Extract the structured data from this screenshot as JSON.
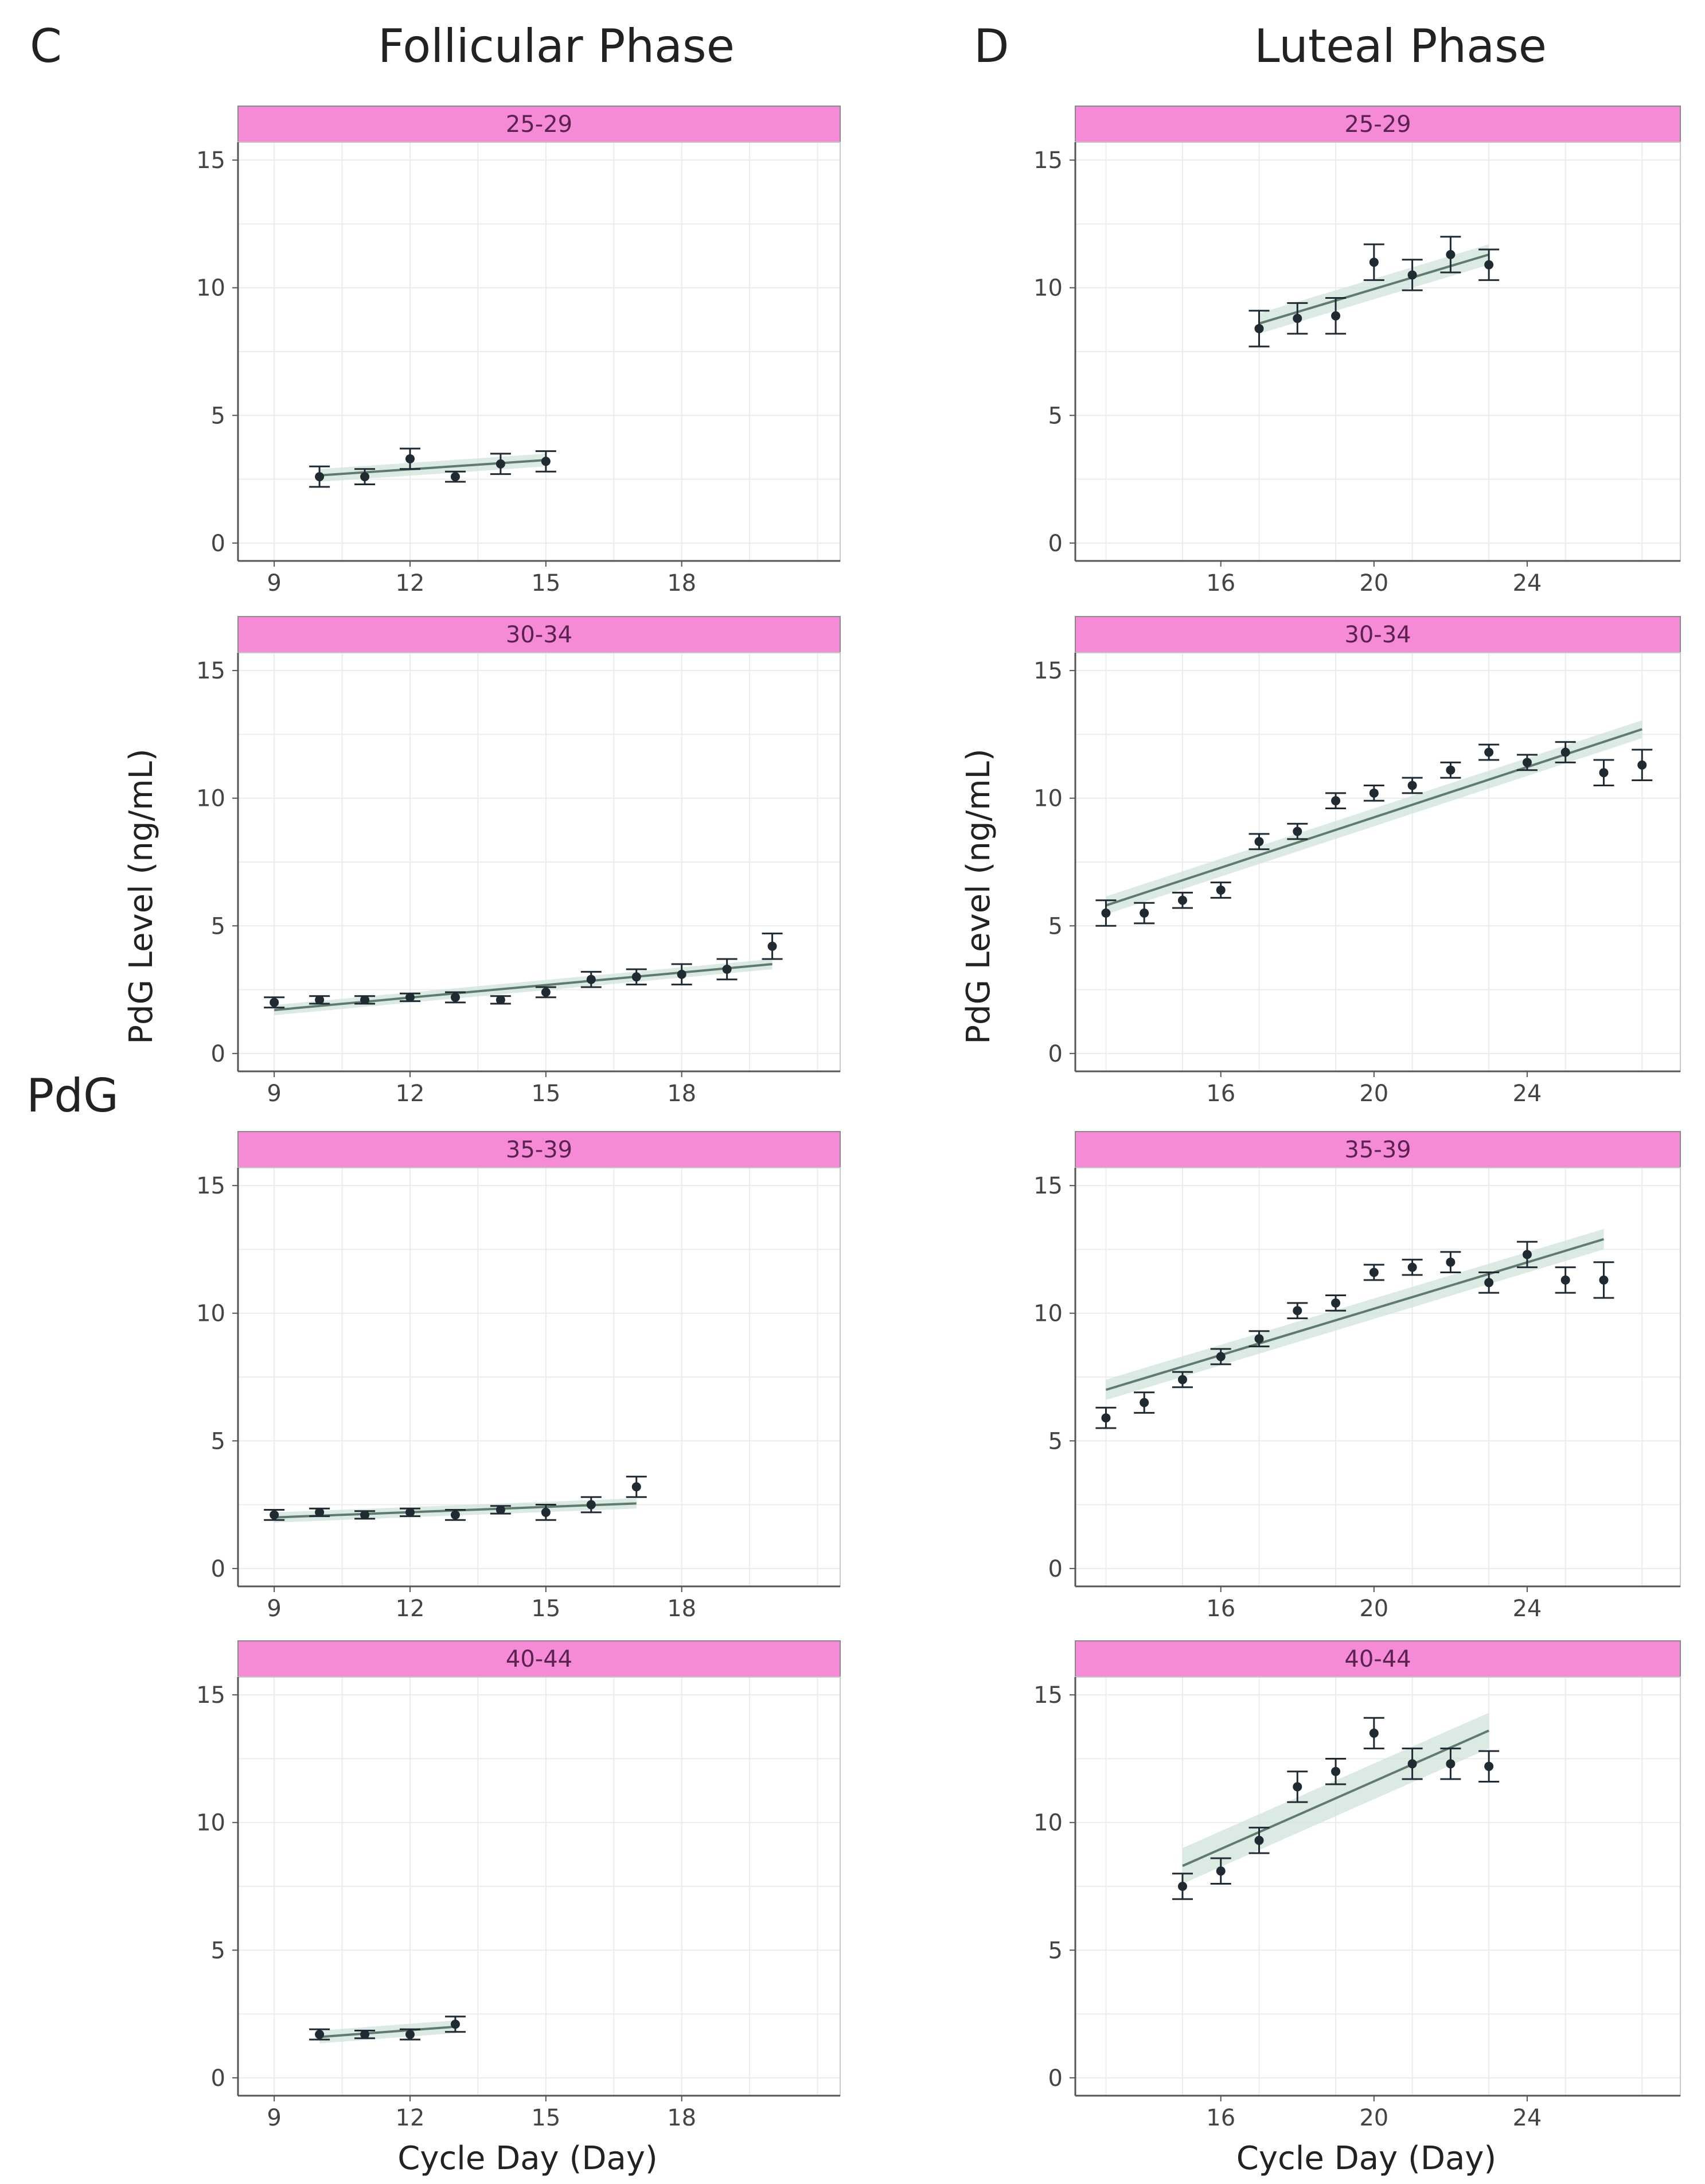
{
  "figure": {
    "panel_c_letter": "C",
    "panel_d_letter": "D",
    "panel_c_title": "Follicular Phase",
    "panel_d_title": "Luteal Phase",
    "row_label": "PdG",
    "ylabel": "PdG Level (ng/mL)",
    "xlabel": "Cycle Day (Day)"
  },
  "colors": {
    "strip": "#f58bd6",
    "point": "#1f2a33",
    "fit_line": "#5f7b70",
    "ribbon": "#cfe3da",
    "grid": "#ececec",
    "border": "#8a8a8a"
  },
  "chart_data": [
    {
      "id": "C-25-29",
      "panel": "C",
      "type": "scatter",
      "facet": "25-29",
      "x_ticks": [
        9,
        12,
        15,
        18
      ],
      "y_ticks": [
        0,
        5,
        10,
        15
      ],
      "xlim": [
        8.2,
        21.5
      ],
      "ylim": [
        -0.7,
        15.7
      ],
      "ylabel": "",
      "xlabel": "",
      "x": [
        10,
        11,
        12,
        13,
        14,
        15
      ],
      "y": [
        2.6,
        2.6,
        3.3,
        2.6,
        3.1,
        3.2
      ],
      "se": [
        0.4,
        0.3,
        0.4,
        0.2,
        0.4,
        0.4
      ],
      "fit": {
        "x": [
          10,
          15
        ],
        "y": [
          2.65,
          3.25
        ],
        "se": 0.25
      }
    },
    {
      "id": "C-30-34",
      "panel": "C",
      "type": "scatter",
      "facet": "30-34",
      "x_ticks": [
        9,
        12,
        15,
        18
      ],
      "y_ticks": [
        0,
        5,
        10,
        15
      ],
      "xlim": [
        8.2,
        21.5
      ],
      "ylim": [
        -0.7,
        15.7
      ],
      "ylabel": "PdG Level (ng/mL)",
      "xlabel": "",
      "x": [
        9,
        10,
        11,
        12,
        13,
        14,
        15,
        16,
        17,
        18,
        19,
        20
      ],
      "y": [
        2.0,
        2.1,
        2.1,
        2.2,
        2.2,
        2.1,
        2.4,
        2.9,
        3.0,
        3.1,
        3.3,
        4.2
      ],
      "se": [
        0.2,
        0.15,
        0.15,
        0.15,
        0.2,
        0.15,
        0.2,
        0.3,
        0.3,
        0.4,
        0.4,
        0.5
      ],
      "fit": {
        "x": [
          9,
          20
        ],
        "y": [
          1.7,
          3.5
        ],
        "se": 0.2
      }
    },
    {
      "id": "C-35-39",
      "panel": "C",
      "type": "scatter",
      "facet": "35-39",
      "x_ticks": [
        9,
        12,
        15,
        18
      ],
      "y_ticks": [
        0,
        5,
        10,
        15
      ],
      "xlim": [
        8.2,
        21.5
      ],
      "ylim": [
        -0.7,
        15.7
      ],
      "ylabel": "",
      "xlabel": "",
      "x": [
        9,
        10,
        11,
        12,
        13,
        14,
        15,
        16,
        17
      ],
      "y": [
        2.1,
        2.2,
        2.1,
        2.2,
        2.1,
        2.3,
        2.2,
        2.5,
        3.2
      ],
      "se": [
        0.2,
        0.15,
        0.15,
        0.15,
        0.2,
        0.15,
        0.3,
        0.3,
        0.4
      ],
      "fit": {
        "x": [
          9,
          17
        ],
        "y": [
          2.0,
          2.55
        ],
        "se": 0.2
      }
    },
    {
      "id": "C-40-44",
      "panel": "C",
      "type": "scatter",
      "facet": "40-44",
      "x_ticks": [
        9,
        12,
        15,
        18
      ],
      "y_ticks": [
        0,
        5,
        10,
        15
      ],
      "xlim": [
        8.2,
        21.5
      ],
      "ylim": [
        -0.7,
        15.7
      ],
      "ylabel": "",
      "xlabel": "Cycle Day (Day)",
      "x": [
        10,
        11,
        12,
        13
      ],
      "y": [
        1.7,
        1.7,
        1.7,
        2.1
      ],
      "se": [
        0.2,
        0.15,
        0.2,
        0.3
      ],
      "fit": {
        "x": [
          10,
          13
        ],
        "y": [
          1.6,
          2.0
        ],
        "se": 0.25
      }
    },
    {
      "id": "D-25-29",
      "panel": "D",
      "type": "scatter",
      "facet": "25-29",
      "x_ticks": [
        16,
        20,
        24
      ],
      "y_ticks": [
        0,
        5,
        10,
        15
      ],
      "xlim": [
        12.2,
        28.0
      ],
      "ylim": [
        -0.7,
        15.7
      ],
      "ylabel": "",
      "xlabel": "",
      "x": [
        17,
        18,
        19,
        20,
        21,
        22,
        23
      ],
      "y": [
        8.4,
        8.8,
        8.9,
        11.0,
        10.5,
        11.3,
        10.9
      ],
      "se": [
        0.7,
        0.6,
        0.7,
        0.7,
        0.6,
        0.7,
        0.6
      ],
      "fit": {
        "x": [
          17,
          23
        ],
        "y": [
          8.6,
          11.3
        ],
        "se": 0.4
      }
    },
    {
      "id": "D-30-34",
      "panel": "D",
      "type": "scatter",
      "facet": "30-34",
      "x_ticks": [
        16,
        20,
        24
      ],
      "y_ticks": [
        0,
        5,
        10,
        15
      ],
      "xlim": [
        12.2,
        28.0
      ],
      "ylim": [
        -0.7,
        15.7
      ],
      "ylabel": "PdG Level (ng/mL)",
      "xlabel": "",
      "x": [
        13,
        14,
        15,
        16,
        17,
        18,
        19,
        20,
        21,
        22,
        23,
        24,
        25,
        26,
        27
      ],
      "y": [
        5.5,
        5.5,
        6.0,
        6.4,
        8.3,
        8.7,
        9.9,
        10.2,
        10.5,
        11.1,
        11.8,
        11.4,
        11.8,
        11.0,
        11.3
      ],
      "se": [
        0.5,
        0.4,
        0.3,
        0.3,
        0.3,
        0.3,
        0.3,
        0.3,
        0.3,
        0.3,
        0.3,
        0.3,
        0.4,
        0.5,
        0.6
      ],
      "fit": {
        "x": [
          13,
          27
        ],
        "y": [
          5.8,
          12.7
        ],
        "se": 0.35
      }
    },
    {
      "id": "D-35-39",
      "panel": "D",
      "type": "scatter",
      "facet": "35-39",
      "x_ticks": [
        16,
        20,
        24
      ],
      "y_ticks": [
        0,
        5,
        10,
        15
      ],
      "xlim": [
        12.2,
        28.0
      ],
      "ylim": [
        -0.7,
        15.7
      ],
      "ylabel": "",
      "xlabel": "",
      "x": [
        13,
        14,
        15,
        16,
        17,
        18,
        19,
        20,
        21,
        22,
        23,
        24,
        25,
        26
      ],
      "y": [
        5.9,
        6.5,
        7.4,
        8.3,
        9.0,
        10.1,
        10.4,
        11.6,
        11.8,
        12.0,
        11.2,
        12.3,
        11.3,
        11.3
      ],
      "se": [
        0.4,
        0.4,
        0.3,
        0.3,
        0.3,
        0.3,
        0.3,
        0.3,
        0.3,
        0.4,
        0.4,
        0.5,
        0.5,
        0.7
      ],
      "fit": {
        "x": [
          13,
          26
        ],
        "y": [
          7.0,
          12.9
        ],
        "se": 0.4
      }
    },
    {
      "id": "D-40-44",
      "panel": "D",
      "type": "scatter",
      "facet": "40-44",
      "x_ticks": [
        16,
        20,
        24
      ],
      "y_ticks": [
        0,
        5,
        10,
        15
      ],
      "xlim": [
        12.2,
        28.0
      ],
      "ylim": [
        -0.7,
        15.7
      ],
      "ylabel": "",
      "xlabel": "Cycle Day (Day)",
      "x": [
        15,
        16,
        17,
        18,
        19,
        20,
        21,
        22,
        23
      ],
      "y": [
        7.5,
        8.1,
        9.3,
        11.4,
        12.0,
        13.5,
        12.3,
        12.3,
        12.2
      ],
      "se": [
        0.5,
        0.5,
        0.5,
        0.6,
        0.5,
        0.6,
        0.6,
        0.6,
        0.6
      ],
      "fit": {
        "x": [
          15,
          23
        ],
        "y": [
          8.3,
          13.6
        ],
        "se": 0.7
      }
    }
  ]
}
